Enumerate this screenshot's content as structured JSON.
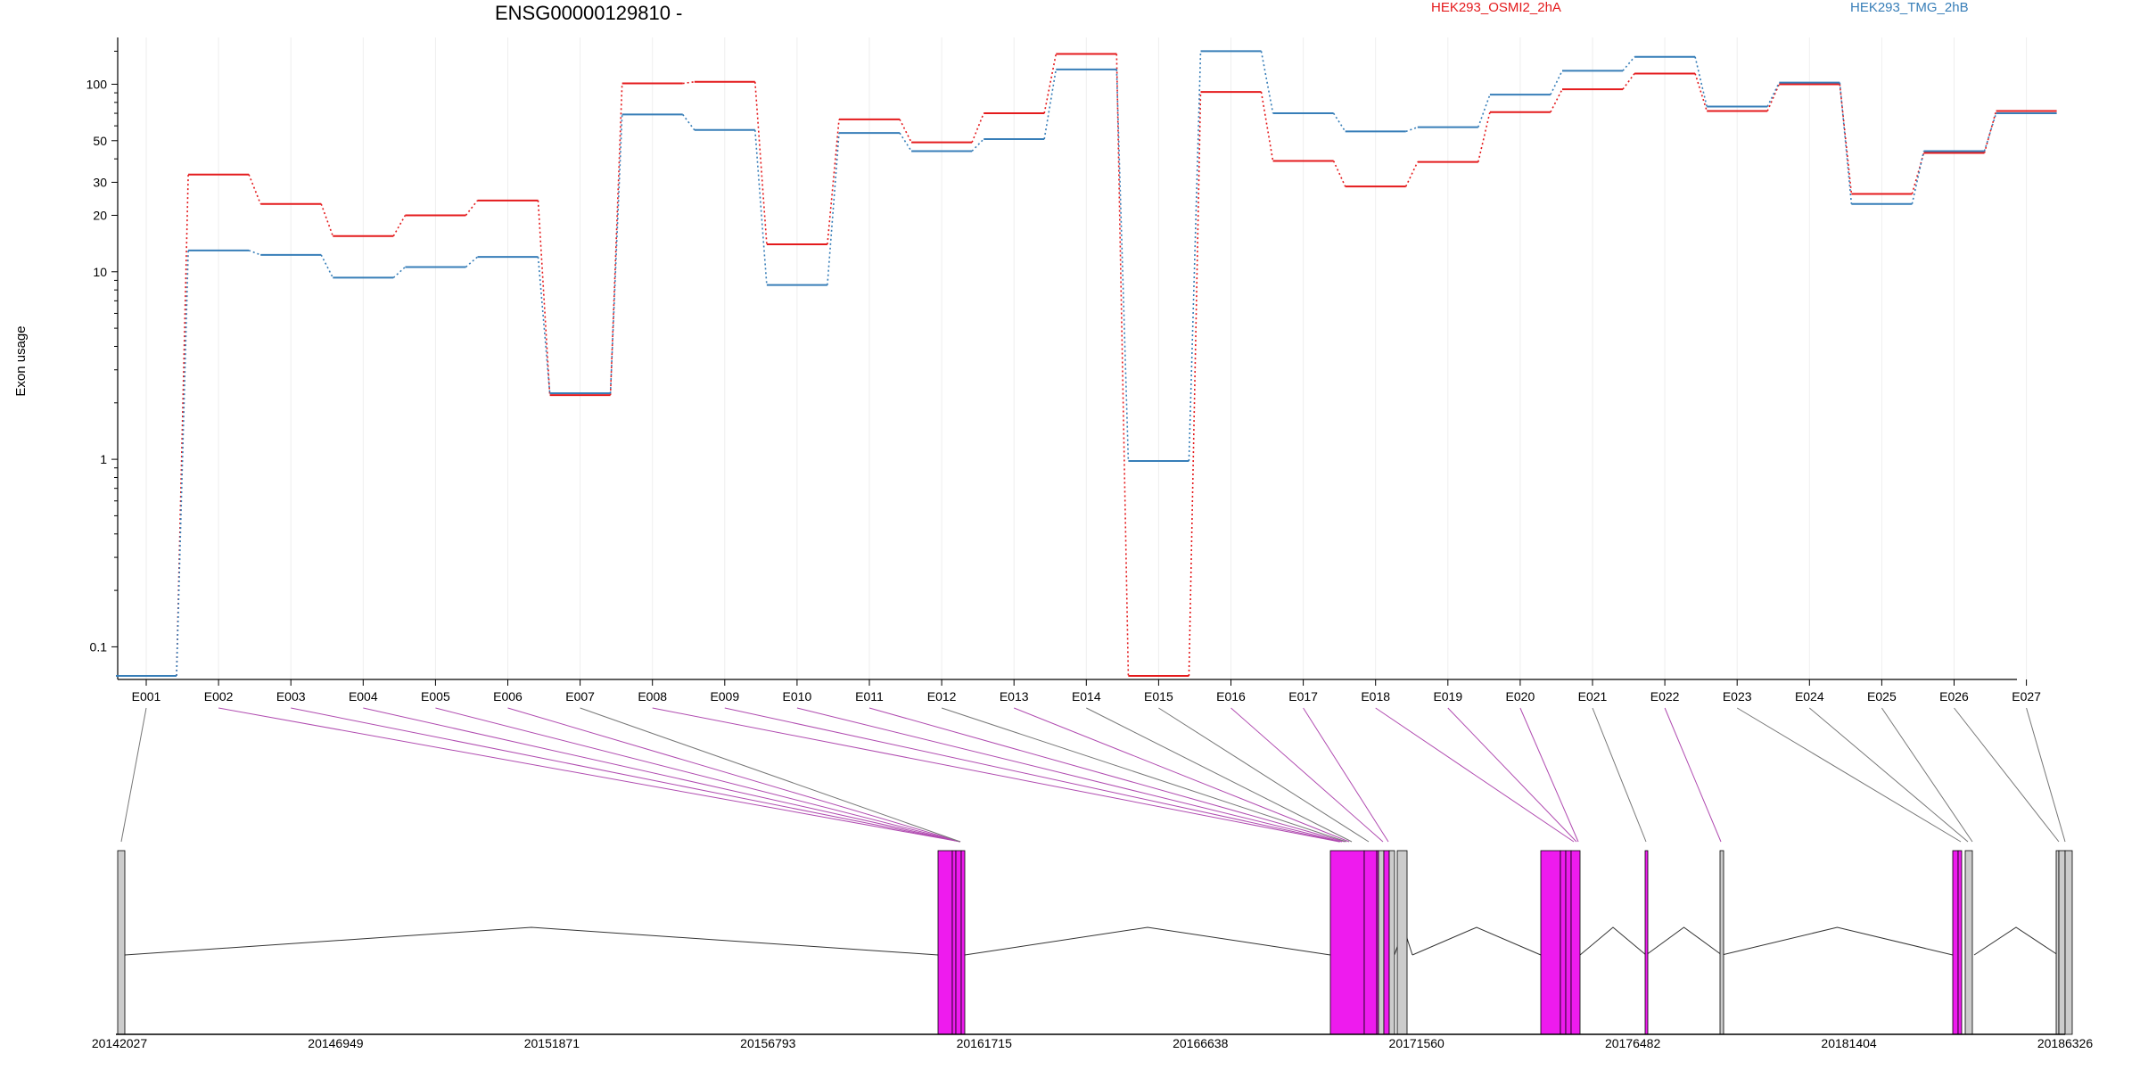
{
  "chart_data": {
    "type": "line",
    "title": "ENSG00000129810 -",
    "xlabel": "",
    "ylabel": "Exon usage",
    "yscale": "log",
    "ylim": [
      0.07,
      170
    ],
    "yticks": [
      "0.1",
      "1",
      "10",
      "20",
      "30",
      "50",
      "100"
    ],
    "grid": "vertical, light gray",
    "legend_position": "top",
    "categories": [
      "E001",
      "E002",
      "E003",
      "E004",
      "E005",
      "E006",
      "E007",
      "E008",
      "E009",
      "E010",
      "E011",
      "E012",
      "E013",
      "E014",
      "E015",
      "E016",
      "E017",
      "E018",
      "E019",
      "E020",
      "E021",
      "E022",
      "E023",
      "E024",
      "E025",
      "E026",
      "E027"
    ],
    "series": [
      {
        "name": "HEK293_OSMI2_2hA",
        "color": "#e41a1c",
        "values": [
          0.07,
          33,
          23,
          15.5,
          20,
          24,
          2.2,
          101,
          103,
          14,
          65,
          49,
          70,
          145,
          0.07,
          91,
          39,
          28.5,
          38.5,
          71,
          94,
          114,
          72,
          100,
          26,
          43,
          72
        ]
      },
      {
        "name": "HEK293_TMG_2hB",
        "color": "#377eb8",
        "values": [
          0.07,
          13,
          12.3,
          9.3,
          10.6,
          12,
          2.25,
          69,
          57,
          8.5,
          55,
          44,
          51,
          120,
          0.98,
          150,
          70,
          56,
          59,
          88,
          118,
          140,
          76,
          102,
          23,
          44,
          70
        ]
      }
    ],
    "genomic_axis": {
      "ticks": [
        "20142027",
        "20146949",
        "20151871",
        "20156793",
        "20161715",
        "20166638",
        "20171560",
        "20176482",
        "20181404",
        "20186326"
      ]
    },
    "exon_highlight_color": "#ee1bee",
    "exon_normal_color": "#cccccc"
  }
}
